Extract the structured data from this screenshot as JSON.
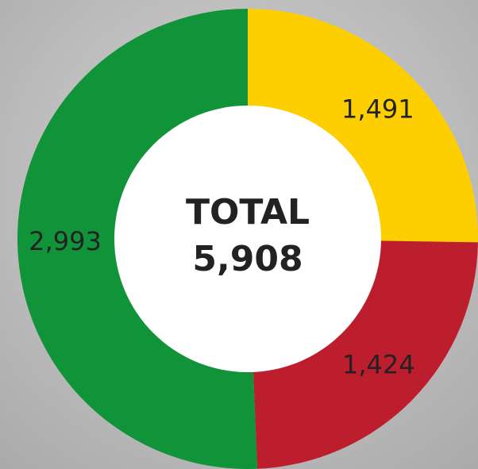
{
  "chart_data": {
    "type": "donut",
    "series": [
      {
        "name": null,
        "values": [
          1491,
          1424,
          2993
        ],
        "value_labels": [
          "1,491",
          "1,424",
          "2,993"
        ],
        "colors": [
          "#fecf00",
          "#bd1e2d",
          "#109339"
        ]
      }
    ],
    "center_title": "TOTAL",
    "total": 5908,
    "total_label": "5,908"
  }
}
